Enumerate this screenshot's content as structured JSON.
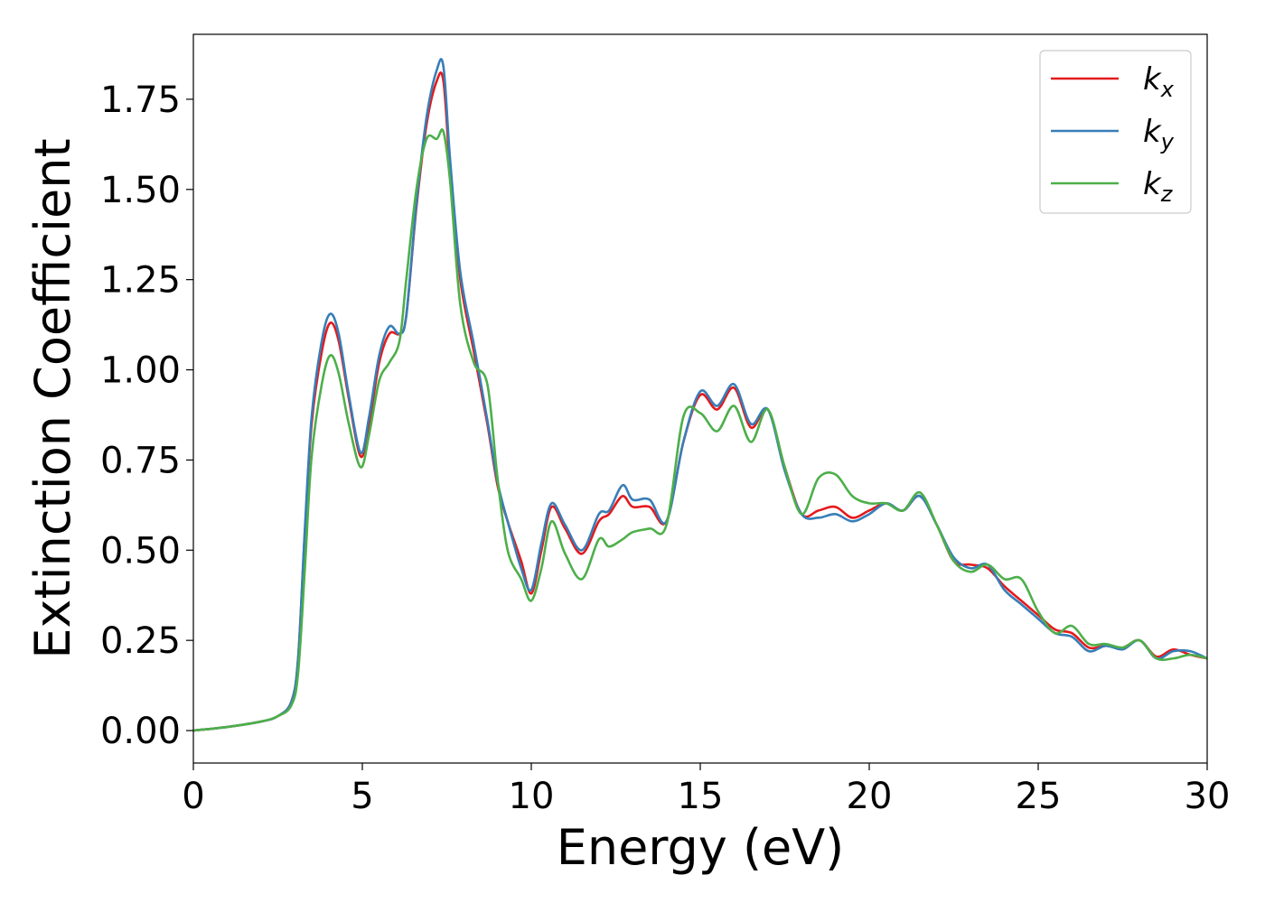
{
  "chart_data": {
    "type": "line",
    "title": "",
    "xlabel": "Energy (eV)",
    "ylabel": "Extinction Coefficient",
    "xlim": [
      0,
      30
    ],
    "ylim": [
      -0.09,
      1.93
    ],
    "xticks": [
      0,
      5,
      10,
      15,
      20,
      25,
      30
    ],
    "xtick_labels": [
      "0",
      "5",
      "10",
      "15",
      "20",
      "25",
      "30"
    ],
    "yticks": [
      0.0,
      0.25,
      0.5,
      0.75,
      1.0,
      1.25,
      1.5,
      1.75
    ],
    "ytick_labels": [
      "0.00",
      "0.25",
      "0.50",
      "0.75",
      "1.00",
      "1.25",
      "1.50",
      "1.75"
    ],
    "grid": false,
    "legend_position": "top-right",
    "series": [
      {
        "name": "k",
        "subscript": "x",
        "color": "#e41a1c",
        "x": [
          0,
          1,
          2,
          2.5,
          2.9,
          3.1,
          3.3,
          3.5,
          3.8,
          4.05,
          4.3,
          4.6,
          4.95,
          5.2,
          5.5,
          5.8,
          6.1,
          6.3,
          6.6,
          6.9,
          7.2,
          7.4,
          7.6,
          7.9,
          8.3,
          8.7,
          9.0,
          9.3,
          9.7,
          10.0,
          10.3,
          10.6,
          11.0,
          11.5,
          12.0,
          12.3,
          12.7,
          13.0,
          13.5,
          14.0,
          14.5,
          15.0,
          15.5,
          16.0,
          16.5,
          17.0,
          17.5,
          18.0,
          18.5,
          19.0,
          19.5,
          20.0,
          20.5,
          21.0,
          21.5,
          22.0,
          22.5,
          23.0,
          23.5,
          24.0,
          24.5,
          25.0,
          25.5,
          26.0,
          26.5,
          27.0,
          27.5,
          28.0,
          28.5,
          29.0,
          29.5,
          30.0
        ],
        "y": [
          0.0,
          0.01,
          0.025,
          0.04,
          0.08,
          0.2,
          0.55,
          0.85,
          1.05,
          1.13,
          1.08,
          0.92,
          0.76,
          0.85,
          1.02,
          1.1,
          1.1,
          1.15,
          1.45,
          1.68,
          1.8,
          1.8,
          1.55,
          1.25,
          1.05,
          0.85,
          0.68,
          0.58,
          0.47,
          0.38,
          0.5,
          0.62,
          0.56,
          0.49,
          0.58,
          0.6,
          0.65,
          0.62,
          0.62,
          0.58,
          0.8,
          0.93,
          0.89,
          0.95,
          0.84,
          0.89,
          0.73,
          0.6,
          0.61,
          0.62,
          0.59,
          0.61,
          0.63,
          0.61,
          0.65,
          0.57,
          0.47,
          0.46,
          0.45,
          0.4,
          0.36,
          0.32,
          0.28,
          0.27,
          0.23,
          0.235,
          0.23,
          0.25,
          0.205,
          0.225,
          0.21,
          0.2
        ]
      },
      {
        "name": "k",
        "subscript": "y",
        "color": "#377eb8",
        "x": [
          0,
          1,
          2,
          2.5,
          2.9,
          3.1,
          3.3,
          3.5,
          3.8,
          4.05,
          4.3,
          4.6,
          4.95,
          5.2,
          5.5,
          5.8,
          6.1,
          6.3,
          6.6,
          6.9,
          7.2,
          7.4,
          7.6,
          7.9,
          8.3,
          8.7,
          9.0,
          9.3,
          9.7,
          10.0,
          10.3,
          10.6,
          11.0,
          11.5,
          12.0,
          12.3,
          12.7,
          13.0,
          13.5,
          14.0,
          14.5,
          15.0,
          15.5,
          16.0,
          16.5,
          17.0,
          17.5,
          18.0,
          18.5,
          19.0,
          19.5,
          20.0,
          20.5,
          21.0,
          21.5,
          22.0,
          22.5,
          23.0,
          23.5,
          24.0,
          24.5,
          25.0,
          25.5,
          26.0,
          26.5,
          27.0,
          27.5,
          28.0,
          28.5,
          29.0,
          29.5,
          30.0
        ],
        "y": [
          0.0,
          0.01,
          0.025,
          0.04,
          0.08,
          0.2,
          0.56,
          0.87,
          1.08,
          1.155,
          1.1,
          0.93,
          0.77,
          0.87,
          1.04,
          1.12,
          1.1,
          1.15,
          1.46,
          1.7,
          1.83,
          1.84,
          1.58,
          1.27,
          1.07,
          0.86,
          0.69,
          0.58,
          0.45,
          0.39,
          0.52,
          0.63,
          0.57,
          0.5,
          0.6,
          0.61,
          0.68,
          0.64,
          0.64,
          0.58,
          0.8,
          0.94,
          0.9,
          0.96,
          0.85,
          0.89,
          0.72,
          0.6,
          0.59,
          0.6,
          0.58,
          0.6,
          0.63,
          0.61,
          0.65,
          0.57,
          0.48,
          0.45,
          0.46,
          0.39,
          0.35,
          0.31,
          0.27,
          0.26,
          0.22,
          0.235,
          0.225,
          0.25,
          0.2,
          0.22,
          0.22,
          0.2
        ]
      },
      {
        "name": "k",
        "subscript": "z",
        "color": "#4daf4a",
        "x": [
          0,
          1,
          2,
          2.5,
          2.9,
          3.1,
          3.3,
          3.5,
          3.8,
          4.05,
          4.3,
          4.6,
          4.95,
          5.2,
          5.5,
          5.8,
          6.1,
          6.3,
          6.6,
          6.9,
          7.2,
          7.4,
          7.6,
          7.9,
          8.3,
          8.7,
          9.0,
          9.3,
          9.7,
          10.0,
          10.3,
          10.6,
          11.0,
          11.5,
          12.0,
          12.3,
          12.7,
          13.0,
          13.5,
          14.0,
          14.5,
          15.0,
          15.5,
          16.0,
          16.5,
          17.0,
          17.5,
          18.0,
          18.5,
          19.0,
          19.5,
          20.0,
          20.5,
          21.0,
          21.5,
          22.0,
          22.5,
          23.0,
          23.5,
          24.0,
          24.5,
          25.0,
          25.5,
          26.0,
          26.5,
          27.0,
          27.5,
          28.0,
          28.5,
          29.0,
          29.5,
          30.0
        ],
        "y": [
          0.0,
          0.01,
          0.025,
          0.04,
          0.07,
          0.16,
          0.45,
          0.76,
          0.96,
          1.04,
          0.99,
          0.85,
          0.73,
          0.82,
          0.97,
          1.02,
          1.08,
          1.25,
          1.5,
          1.64,
          1.64,
          1.66,
          1.52,
          1.18,
          1.02,
          0.96,
          0.7,
          0.5,
          0.42,
          0.36,
          0.45,
          0.58,
          0.49,
          0.42,
          0.53,
          0.51,
          0.53,
          0.55,
          0.56,
          0.57,
          0.87,
          0.88,
          0.83,
          0.9,
          0.8,
          0.89,
          0.73,
          0.6,
          0.7,
          0.71,
          0.65,
          0.63,
          0.63,
          0.61,
          0.66,
          0.57,
          0.47,
          0.44,
          0.46,
          0.42,
          0.42,
          0.33,
          0.27,
          0.29,
          0.24,
          0.24,
          0.23,
          0.25,
          0.2,
          0.2,
          0.21,
          0.2
        ]
      }
    ]
  }
}
